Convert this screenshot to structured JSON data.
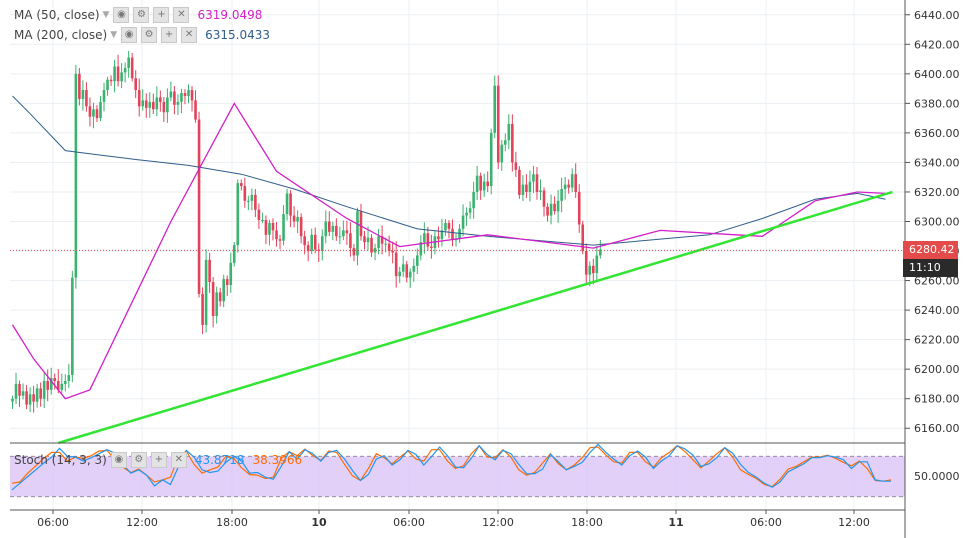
{
  "legend": {
    "ma50": {
      "label": "MA (50, close)",
      "value": "6319.0498",
      "color": "#d31ec9"
    },
    "ma200": {
      "label": "MA (200, close)",
      "value": "6315.0433",
      "color": "#2f5d8a"
    },
    "stoch": {
      "label": "Stoch (14, 3, 3)",
      "k_value": "43.8718",
      "d_value": "38.3966",
      "k_color": "#2196f3",
      "d_color": "#ff6d00"
    }
  },
  "icons": [
    "eye-icon",
    "gear-icon",
    "plus-icon",
    "close-icon"
  ],
  "price_axis": {
    "ticks": [
      "6440.00",
      "6420.00",
      "6400.00",
      "6380.00",
      "6360.00",
      "6340.00",
      "6320.00",
      "6300.00",
      "6280.00",
      "6260.00",
      "6240.00",
      "6220.00",
      "6200.00",
      "6180.00",
      "6160.00"
    ],
    "last_price_label": "6280.42",
    "countdown_label": "11:10",
    "last_price_color": "#e34b4b",
    "countdown_color": "#2a2a2a"
  },
  "stoch_axis": {
    "tick": "50.0000"
  },
  "time_axis": {
    "ticks": [
      {
        "label": "06:00",
        "bold": false
      },
      {
        "label": "12:00",
        "bold": false
      },
      {
        "label": "18:00",
        "bold": false
      },
      {
        "label": "10",
        "bold": true
      },
      {
        "label": "06:00",
        "bold": false
      },
      {
        "label": "12:00",
        "bold": false
      },
      {
        "label": "18:00",
        "bold": false
      },
      {
        "label": "11",
        "bold": true
      },
      {
        "label": "06:00",
        "bold": false
      },
      {
        "label": "12:00",
        "bold": false
      }
    ]
  },
  "chart_data": {
    "type": "candlestick",
    "symbol_interval_hours": 0.5,
    "y_range": [
      6150,
      6450
    ],
    "colors": {
      "up": "#3bb26f",
      "down": "#e2435a",
      "trendline": "#33e533"
    },
    "candles": [
      6180.0,
      6190.0,
      6182.0,
      6185.0,
      6176.0,
      6183.0,
      6178.0,
      6187.0,
      6180.0,
      6192.0,
      6186.0,
      6194.0,
      6192.0,
      6186.0,
      6190.0,
      6192.0,
      6196.0,
      6262.0,
      6400.0,
      6383.0,
      6389.0,
      6378.0,
      6371.0,
      6376.0,
      6370.0,
      6381.0,
      6389.0,
      6396.0,
      6395.0,
      6405.0,
      6395.0,
      6401.0,
      6404.0,
      6411.0,
      6397.0,
      6389.0,
      6378.0,
      6382.0,
      6377.0,
      6381.0,
      6376.0,
      6384.0,
      6381.0,
      6374.0,
      6384.0,
      6388.0,
      6379.0,
      6381.0,
      6387.0,
      6385.0,
      6389.0,
      6382.0,
      6369.0,
      6251.0,
      6230.0,
      6274.0,
      6259.0,
      6236.0,
      6252.0,
      6246.0,
      6261.0,
      6257.0,
      6272.0,
      6284.0,
      6326.0,
      6324.0,
      6314.0,
      6314.0,
      6318.0,
      6308.0,
      6301.0,
      6301.0,
      6291.0,
      6299.0,
      6294.0,
      6288.0,
      6287.0,
      6305.0,
      6319.0,
      6304.0,
      6300.0,
      6303.0,
      6290.0,
      6284.0,
      6280.0,
      6291.0,
      6281.0,
      6280.0,
      6290.0,
      6300.0,
      6293.0,
      6297.0,
      6290.0,
      6290.0,
      6294.0,
      6292.0,
      6282.0,
      6277.0,
      6307.0,
      6290.0,
      6286.0,
      6289.0,
      6279.0,
      6282.0,
      6290.0,
      6285.0,
      6285.0,
      6280.0,
      6279.0,
      6263.0,
      6266.0,
      6271.0,
      6262.0,
      6266.0,
      6270.0,
      6277.0,
      6286.0,
      6292.0,
      6283.0,
      6282.0,
      6290.0,
      6288.0,
      6294.0,
      6299.0,
      6295.0,
      6288.0,
      6288.0,
      6295.0,
      6304.0,
      6306.0,
      6309.0,
      6320.0,
      6331.0,
      6321.0,
      6327.0,
      6324.0,
      6360.0,
      6392.0,
      6340.0,
      6352.0,
      6355.0,
      6366.0,
      6340.0,
      6335.0,
      6318.0,
      6325.0,
      6320.0,
      6327.0,
      6332.0,
      6320.0,
      6321.0,
      6310.0,
      6304.0,
      6312.0,
      6307.0,
      6314.0,
      6322.0,
      6325.0,
      6323.0,
      6332.0,
      6320.0,
      6298.0,
      6280.0,
      6264.0,
      6270.0,
      6265.0,
      6277.0,
      6281.0
    ],
    "ma50": [
      [
        0,
        6230
      ],
      [
        6,
        6207
      ],
      [
        15,
        6180
      ],
      [
        22,
        6186
      ],
      [
        45,
        6300
      ],
      [
        63,
        6380
      ],
      [
        75,
        6334
      ],
      [
        95,
        6302
      ],
      [
        110,
        6283
      ],
      [
        135,
        6291
      ],
      [
        165,
        6282
      ],
      [
        184,
        6294
      ],
      [
        198,
        6292
      ],
      [
        213,
        6290
      ],
      [
        228,
        6314
      ],
      [
        240,
        6320
      ],
      [
        248,
        6319.05
      ]
    ],
    "ma200": [
      [
        0,
        6385
      ],
      [
        5,
        6373
      ],
      [
        15,
        6348
      ],
      [
        25,
        6345
      ],
      [
        35,
        6342
      ],
      [
        50,
        6338
      ],
      [
        65,
        6332
      ],
      [
        80,
        6322
      ],
      [
        95,
        6310
      ],
      [
        115,
        6295
      ],
      [
        135,
        6290
      ],
      [
        165,
        6284
      ],
      [
        198,
        6291
      ],
      [
        213,
        6302
      ],
      [
        228,
        6315
      ],
      [
        240,
        6319
      ],
      [
        248,
        6315.04
      ]
    ],
    "trendline": [
      [
        13,
        6150
      ],
      [
        250,
        6320
      ]
    ],
    "last_price": 6280.42,
    "stoch": {
      "y_range": [
        0,
        100
      ],
      "upper_band": 80,
      "lower_band": 20,
      "k": [
        30,
        40,
        50,
        60,
        70,
        79,
        92,
        80,
        79,
        73,
        78,
        84,
        90,
        85,
        68,
        55,
        60,
        52,
        36,
        45,
        38,
        64,
        89,
        79,
        60,
        56,
        58,
        71,
        80,
        73,
        55,
        56,
        49,
        46,
        65,
        87,
        76,
        90,
        84,
        73,
        86,
        89,
        76,
        59,
        44,
        53,
        76,
        81,
        67,
        75,
        89,
        83,
        67,
        80,
        94,
        81,
        64,
        63,
        77,
        96,
        83,
        75,
        89,
        84,
        68,
        54,
        54,
        61,
        83,
        72,
        60,
        65,
        71,
        86,
        98,
        86,
        76,
        67,
        81,
        88,
        79,
        62,
        73,
        81,
        96,
        91,
        82,
        65,
        69,
        78,
        93,
        85,
        68,
        56,
        49,
        40,
        34,
        42,
        57,
        63,
        69,
        78,
        78,
        81,
        79,
        75,
        62,
        72,
        72,
        45,
        43,
        43
      ],
      "d": [
        40,
        42,
        55,
        66,
        77,
        86,
        86,
        73,
        79,
        77,
        81,
        88,
        89,
        75,
        64,
        56,
        61,
        52,
        42,
        45,
        49,
        78,
        88,
        68,
        55,
        60,
        64,
        80,
        77,
        63,
        53,
        52,
        47,
        49,
        77,
        87,
        81,
        91,
        81,
        74,
        88,
        86,
        68,
        51,
        44,
        62,
        84,
        78,
        69,
        79,
        88,
        76,
        73,
        90,
        90,
        73,
        62,
        66,
        84,
        96,
        79,
        78,
        90,
        79,
        60,
        52,
        56,
        70,
        84,
        69,
        60,
        67,
        78,
        93,
        94,
        82,
        72,
        70,
        86,
        86,
        72,
        64,
        78,
        86,
        96,
        87,
        75,
        63,
        73,
        84,
        93,
        79,
        60,
        53,
        47,
        38,
        35,
        46,
        61,
        65,
        72,
        79,
        79,
        82,
        77,
        71,
        66,
        73,
        62,
        44,
        43,
        45
      ]
    }
  }
}
